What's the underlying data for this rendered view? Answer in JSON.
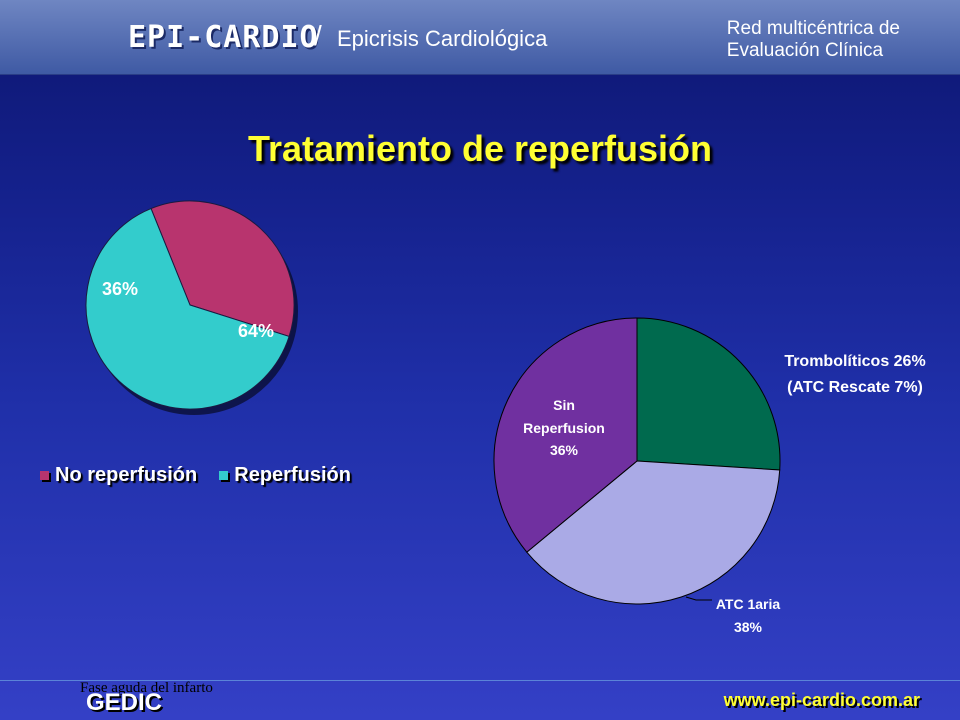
{
  "header": {
    "brand": "EPI-CARDIO",
    "separator": "/",
    "subtitle": "Epicrisis Cardiológica",
    "network_line1": "Red multicéntrica de",
    "network_line2": "Evaluación Clínica"
  },
  "title": "Tratamiento de reperfusión",
  "footer": {
    "note": "Fase aguda del infarto",
    "org": "GEDIC",
    "website": "www.epi-cardio.com.ar"
  },
  "colors": {
    "no_reperfusion": "#b8346e",
    "reperfusion": "#33cccc",
    "trombolitico": "#006a4e",
    "atc_1aria": "#aaaae6",
    "sin_reperfusion": "#7030a0",
    "title": "#ffff33"
  },
  "chart_data": [
    {
      "type": "pie",
      "title": "",
      "slices": [
        {
          "label": "No reperfusión",
          "value": 36,
          "display": "36%"
        },
        {
          "label": "Reperfusión",
          "value": 64,
          "display": "64%"
        }
      ],
      "legend": [
        "No reperfusión",
        "Reperfusión"
      ],
      "legend_position": "bottom"
    },
    {
      "type": "pie",
      "title": "",
      "slices": [
        {
          "label": "Trombolíticos",
          "value": 26,
          "display_lines": [
            "Trombolíticos 26%",
            "(ATC Rescate 7%)"
          ]
        },
        {
          "label": "ATC 1aria",
          "value": 38,
          "display_lines": [
            "ATC 1aria",
            "38%"
          ]
        },
        {
          "label": "Sin Reperfusion",
          "value": 36,
          "display_lines": [
            "Sin",
            "Reperfusion",
            "36%"
          ]
        }
      ]
    }
  ]
}
